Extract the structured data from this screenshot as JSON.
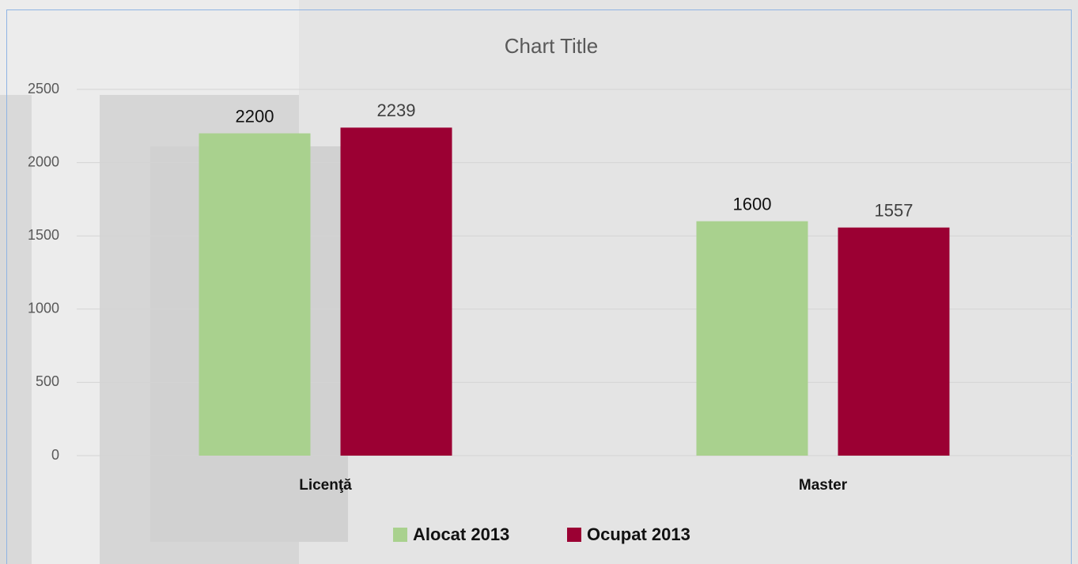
{
  "chart_data": {
    "type": "bar",
    "title": "Chart Title",
    "categories": [
      "Licenţă",
      "Master"
    ],
    "series": [
      {
        "name": "Alocat 2013",
        "color": "#a9d18e",
        "values": [
          2200,
          1600
        ]
      },
      {
        "name": "Ocupat 2013",
        "color": "#9b0033",
        "values": [
          2239,
          1557
        ]
      }
    ],
    "ylim": [
      0,
      2500
    ],
    "yticks": [
      0,
      500,
      1000,
      1500,
      2000,
      2500
    ],
    "grid": true,
    "legend": "bottom"
  }
}
